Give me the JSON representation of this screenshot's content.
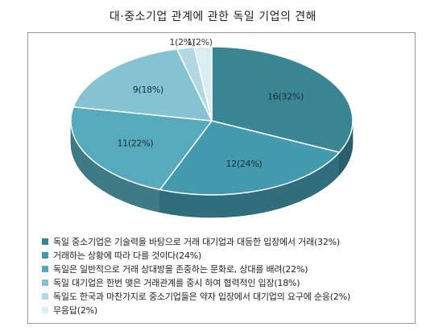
{
  "title": "대·중소기업 관계에 관한 독일 기업의 견해",
  "chart_data": {
    "type": "pie",
    "slices": [
      {
        "label": "16(32%)",
        "value": 32,
        "legend": "독일 중소기업은 기술력을 바탕으로 거래 대기업과 대등한 입장에서 거래(32%)",
        "color": "#3a8594"
      },
      {
        "label": "12(24%)",
        "value": 24,
        "legend": "거래하는 상황에 따라 다를 것이다(24%)",
        "color": "#4399ad"
      },
      {
        "label": "11(22%)",
        "value": 22,
        "legend": "독일은 일반적으로 거래 상대방을 존중하는 문화로, 상대를 배려(22%)",
        "color": "#57a9bc"
      },
      {
        "label": "9(18%)",
        "value": 18,
        "legend": "독일 대기업은 한번 맺은 거래관계를 중시 하여 협력적인 입장(18%)",
        "color": "#86c3d2"
      },
      {
        "label": "1(2%)",
        "value": 2,
        "legend": "독일도 한국과 마찬가지로 중소기업들은 약자 입장에서 대기업의 요구에 순응(2%)",
        "color": "#b2d9e3"
      },
      {
        "label": "1(2%)",
        "value": 2,
        "legend": "무응답(2%)",
        "color": "#dbeef3"
      }
    ],
    "legend_placement": "bottom"
  }
}
